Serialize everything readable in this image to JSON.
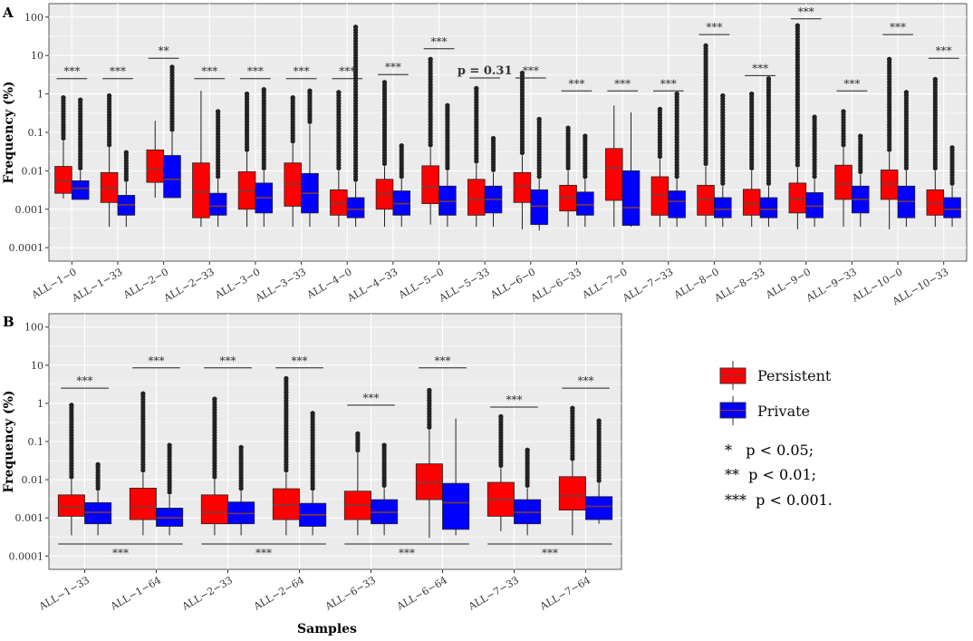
{
  "colors": {
    "persistent": "#ff0000",
    "private": "#0000ff",
    "panel_bg": "#ebebeb",
    "grid": "#ffffff",
    "median": "#7a3b3b",
    "text": "#222222"
  },
  "legend": {
    "persistent_label": "Persistent",
    "private_label": "Private"
  },
  "significance_key": [
    "*   p < 0.05;",
    "**  p < 0.01;",
    "***  p < 0.001."
  ],
  "chart_data": [
    {
      "panel": "A",
      "type": "boxplot",
      "y_scale": "log10",
      "ylim": [
        0.0001,
        100
      ],
      "ylabel": "Frequency (%)",
      "xlabel": "",
      "y_ticks": [
        "0.0001",
        "0.001",
        "0.01",
        "0.1",
        "1",
        "10",
        "100"
      ],
      "categories": [
        "ALL−1−0",
        "ALL−1−33",
        "ALL−2−0",
        "ALL−2−33",
        "ALL−3−0",
        "ALL−3−33",
        "ALL−4−0",
        "ALL−4−33",
        "ALL−5−0",
        "ALL−5−33",
        "ALL−6−0",
        "ALL−6−33",
        "ALL−7−0",
        "ALL−7−33",
        "ALL−8−0",
        "ALL−8−33",
        "ALL−9−0",
        "ALL−9−33",
        "ALL−10−0",
        "ALL−10−33"
      ],
      "series": [
        {
          "name": "Persistent",
          "q1": [
            0.0026,
            0.0015,
            0.005,
            0.0006,
            0.001,
            0.0012,
            0.0007,
            0.001,
            0.0014,
            0.0007,
            0.0015,
            0.0009,
            0.0017,
            0.0007,
            0.0007,
            0.0007,
            0.0008,
            0.0018,
            0.0018,
            0.0007
          ],
          "median": [
            0.0055,
            0.0035,
            0.011,
            0.0028,
            0.003,
            0.0045,
            0.0014,
            0.0025,
            0.0038,
            0.0018,
            0.004,
            0.002,
            0.012,
            0.0023,
            0.0018,
            0.0014,
            0.0018,
            0.0045,
            0.0045,
            0.0014
          ],
          "q3": [
            0.013,
            0.009,
            0.035,
            0.016,
            0.0095,
            0.016,
            0.0032,
            0.006,
            0.0135,
            0.006,
            0.009,
            0.0042,
            0.038,
            0.007,
            0.0042,
            0.0033,
            0.0048,
            0.014,
            0.0105,
            0.0032
          ],
          "lower": [
            0.0019,
            0.00035,
            0.002,
            0.00035,
            0.00035,
            0.00035,
            0.00035,
            0.00035,
            0.0004,
            0.00035,
            0.0003,
            0.00035,
            0.00035,
            0.00035,
            0.00035,
            0.00035,
            0.0003,
            0.00035,
            0.0003,
            0.00035
          ],
          "upper": [
            0.06,
            0.04,
            0.2,
            1.2,
            0.03,
            0.05,
            0.01,
            0.013,
            0.04,
            0.015,
            0.025,
            0.01,
            0.5,
            0.02,
            0.013,
            0.01,
            0.012,
            0.04,
            0.03,
            0.01
          ],
          "outlier_max": [
            0.8,
            0.9,
            null,
            null,
            1.0,
            0.8,
            1.1,
            2.0,
            8.0,
            1.4,
            3.5,
            0.13,
            null,
            0.4,
            18,
            1.0,
            60,
            0.35,
            8.0,
            2.4
          ]
        },
        {
          "name": "Private",
          "q1": [
            0.0018,
            0.0007,
            0.002,
            0.0007,
            0.0008,
            0.0008,
            0.0006,
            0.0007,
            0.0007,
            0.0008,
            0.0004,
            0.0007,
            0.00038,
            0.0006,
            0.0006,
            0.0006,
            0.0006,
            0.0008,
            0.0006,
            0.0006
          ],
          "median": [
            0.0035,
            0.0013,
            0.006,
            0.0012,
            0.002,
            0.0026,
            0.001,
            0.0014,
            0.0016,
            0.0018,
            0.0012,
            0.0013,
            0.0011,
            0.0016,
            0.001,
            0.001,
            0.0012,
            0.0018,
            0.0016,
            0.001
          ],
          "q3": [
            0.0055,
            0.0023,
            0.025,
            0.0026,
            0.0048,
            0.0085,
            0.002,
            0.003,
            0.004,
            0.004,
            0.0032,
            0.0028,
            0.01,
            0.003,
            0.002,
            0.002,
            0.0027,
            0.004,
            0.004,
            0.002
          ],
          "lower": [
            0.0018,
            0.00035,
            0.002,
            0.00035,
            0.00035,
            0.00035,
            0.00035,
            0.00035,
            0.00035,
            0.00035,
            0.00028,
            0.00035,
            0.00035,
            0.00035,
            0.00035,
            0.00035,
            0.00035,
            0.00035,
            0.00035,
            0.00035
          ],
          "upper": [
            0.01,
            0.005,
            0.1,
            0.006,
            0.01,
            0.16,
            0.005,
            0.006,
            0.01,
            0.009,
            0.006,
            0.006,
            0.33,
            0.006,
            0.004,
            0.004,
            0.006,
            0.008,
            0.01,
            0.004
          ],
          "outlier_max": [
            0.7,
            0.03,
            5.0,
            0.35,
            1.3,
            1.2,
            55,
            0.045,
            0.5,
            0.07,
            0.22,
            0.08,
            null,
            1.0,
            0.9,
            2.5,
            0.25,
            0.08,
            1.1,
            0.04
          ]
        }
      ],
      "significance": [
        {
          "pair": 1,
          "label": "***"
        },
        {
          "pair": 2,
          "label": "***"
        },
        {
          "pair": 3,
          "label": "**"
        },
        {
          "pair": 4,
          "label": "***"
        },
        {
          "pair": 5,
          "label": "***"
        },
        {
          "pair": 6,
          "label": "***"
        },
        {
          "pair": 7,
          "label": "***"
        },
        {
          "pair": 8,
          "label": "***"
        },
        {
          "pair": 9,
          "label": "***"
        },
        {
          "pair": 10,
          "label": "p = 0.31"
        },
        {
          "pair": 11,
          "label": "***"
        },
        {
          "pair": 12,
          "label": "***"
        },
        {
          "pair": 13,
          "label": "***"
        },
        {
          "pair": 14,
          "label": "***"
        },
        {
          "pair": 15,
          "label": "***"
        },
        {
          "pair": 16,
          "label": "***"
        },
        {
          "pair": 17,
          "label": "***"
        },
        {
          "pair": 18,
          "label": "***"
        },
        {
          "pair": 19,
          "label": "***"
        },
        {
          "pair": 20,
          "label": "***"
        }
      ],
      "bracket_y": [
        2.5,
        2.5,
        8.5,
        2.5,
        2.5,
        2.5,
        2.5,
        3.2,
        15,
        2.6,
        2.6,
        1.2,
        1.2,
        1.2,
        35,
        3.0,
        90,
        1.2,
        35,
        8.5
      ]
    },
    {
      "panel": "B",
      "type": "boxplot",
      "y_scale": "log10",
      "ylim": [
        0.0001,
        100
      ],
      "ylabel": "Frequency (%)",
      "xlabel": "Samples",
      "y_ticks": [
        "0.0001",
        "0.001",
        "0.01",
        "0.1",
        "1",
        "10",
        "100"
      ],
      "categories": [
        "ALL−1−33",
        "ALL−1−64",
        "ALL−2−33",
        "ALL−2−64",
        "ALL−6−33",
        "ALL−6−64",
        "ALL−7−33",
        "ALL−7−64"
      ],
      "series": [
        {
          "name": "Persistent",
          "q1": [
            0.0011,
            0.0009,
            0.0007,
            0.0009,
            0.0009,
            0.003,
            0.0011,
            0.0016
          ],
          "median": [
            0.0019,
            0.002,
            0.0014,
            0.0022,
            0.0022,
            0.0085,
            0.003,
            0.0038
          ],
          "q3": [
            0.004,
            0.006,
            0.004,
            0.0058,
            0.005,
            0.026,
            0.0085,
            0.012
          ],
          "lower": [
            0.00035,
            0.00035,
            0.00035,
            0.00035,
            0.00035,
            0.0003,
            0.00045,
            0.00035
          ],
          "upper": [
            0.01,
            0.015,
            0.01,
            0.015,
            0.05,
            0.2,
            0.02,
            0.03
          ],
          "outlier_max": [
            0.9,
            1.8,
            1.3,
            4.5,
            0.16,
            2.2,
            0.45,
            0.75
          ]
        },
        {
          "name": "Private",
          "q1": [
            0.0007,
            0.0006,
            0.0007,
            0.0006,
            0.0007,
            0.0005,
            0.0007,
            0.0009
          ],
          "median": [
            0.0014,
            0.001,
            0.0013,
            0.0012,
            0.0014,
            0.0025,
            0.0014,
            0.002
          ],
          "q3": [
            0.0025,
            0.0018,
            0.0026,
            0.0024,
            0.003,
            0.008,
            0.003,
            0.0036
          ],
          "lower": [
            0.00035,
            0.00035,
            0.00035,
            0.00035,
            0.00035,
            0.00035,
            0.00035,
            0.0007
          ],
          "upper": [
            0.005,
            0.004,
            0.005,
            0.005,
            0.006,
            0.4,
            0.006,
            0.008
          ],
          "outlier_max": [
            0.025,
            0.08,
            0.07,
            0.55,
            0.08,
            null,
            0.06,
            0.35
          ]
        }
      ],
      "significance": [
        {
          "pair": 1,
          "label": "***"
        },
        {
          "pair": 2,
          "label": "***"
        },
        {
          "pair": 3,
          "label": "***"
        },
        {
          "pair": 4,
          "label": "***"
        },
        {
          "pair": 5,
          "label": "***"
        },
        {
          "pair": 6,
          "label": "***"
        },
        {
          "pair": 7,
          "label": "***"
        },
        {
          "pair": 8,
          "label": "***"
        }
      ],
      "bracket_y": [
        2.5,
        8.5,
        8.5,
        8.5,
        0.9,
        8.5,
        0.8,
        2.5
      ],
      "between_comparisons": [
        {
          "from": 1,
          "to": 2,
          "label": "***"
        },
        {
          "from": 3,
          "to": 4,
          "label": "***"
        },
        {
          "from": 5,
          "to": 6,
          "label": "***"
        },
        {
          "from": 7,
          "to": 8,
          "label": "***"
        }
      ]
    }
  ],
  "panel_labels": [
    "A",
    "B"
  ]
}
